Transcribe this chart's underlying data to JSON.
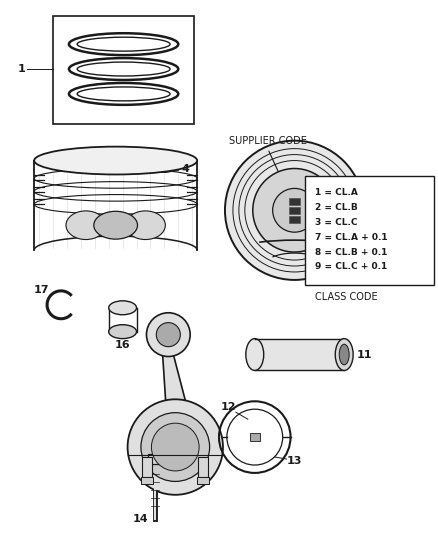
{
  "bg_color": "#ffffff",
  "legend_lines": [
    "1 = CL.A",
    "2 = CL.B",
    "3 = CL.C",
    "7 = CL.A + 0.1",
    "8 = CL.B + 0.1",
    "9 = CL.C + 0.1"
  ],
  "class_code_label": "CLASS CODE",
  "supplier_code_label": "SUPPLIER CODE",
  "line_color": "#1a1a1a",
  "label_color": "#1a1a1a",
  "figsize": [
    4.38,
    5.33
  ],
  "dpi": 100
}
